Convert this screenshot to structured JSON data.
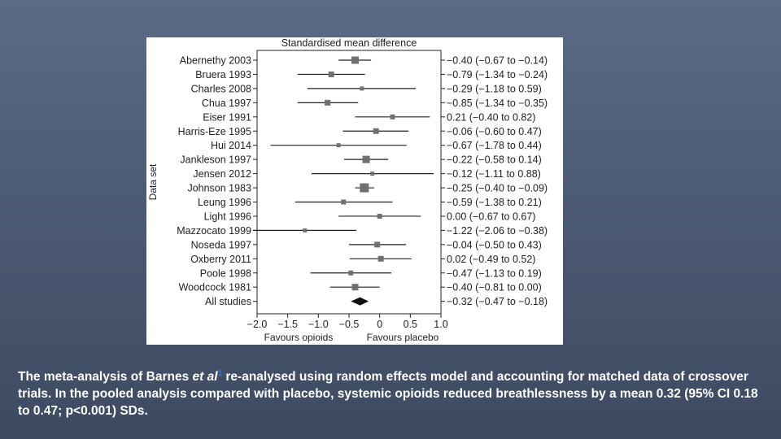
{
  "chart_data": {
    "type": "forest",
    "title": "Standardised mean difference",
    "ylabel": "Data set",
    "xlim": [
      -2.0,
      1.0
    ],
    "x_ticks": [
      "−2.0",
      "−1.5",
      "−1.0",
      "−0.5",
      "0",
      "0.5",
      "1.0"
    ],
    "x_tick_values": [
      -2.0,
      -1.5,
      -1.0,
      -0.5,
      0,
      0.5,
      1.0
    ],
    "favours_left": "Favours opioids",
    "favours_right": "Favours placebo",
    "studies": [
      {
        "name": "Abernethy 2003",
        "smd": -0.4,
        "lo": -0.67,
        "hi": -0.14,
        "weight": 3,
        "label": "−0.40 (−0.67 to −0.14)"
      },
      {
        "name": "Bruera 1993",
        "smd": -0.79,
        "lo": -1.34,
        "hi": -0.24,
        "weight": 2,
        "label": "−0.79 (−1.34 to −0.24)"
      },
      {
        "name": "Charles 2008",
        "smd": -0.29,
        "lo": -1.18,
        "hi": 0.59,
        "weight": 1,
        "label": "−0.29 (−1.18 to 0.59)"
      },
      {
        "name": "Chua 1997",
        "smd": -0.85,
        "lo": -1.34,
        "hi": -0.35,
        "weight": 2,
        "label": "−0.85 (−1.34 to −0.35)"
      },
      {
        "name": "Eiser 1991",
        "smd": 0.21,
        "lo": -0.4,
        "hi": 0.82,
        "weight": 1.5,
        "label": "0.21 (−0.40 to 0.82)"
      },
      {
        "name": "Harris-Eze 1995",
        "smd": -0.06,
        "lo": -0.6,
        "hi": 0.47,
        "weight": 2,
        "label": "−0.06 (−0.60 to 0.47)"
      },
      {
        "name": "Hui 2014",
        "smd": -0.67,
        "lo": -1.78,
        "hi": 0.44,
        "weight": 1,
        "label": "−0.67 (−1.78 to 0.44)"
      },
      {
        "name": "Jankleson 1997",
        "smd": -0.22,
        "lo": -0.58,
        "hi": 0.14,
        "weight": 3,
        "label": "−0.22 (−0.58 to 0.14)"
      },
      {
        "name": "Jensen 2012",
        "smd": -0.12,
        "lo": -1.11,
        "hi": 0.88,
        "weight": 1,
        "label": "−0.12 (−1.11 to 0.88)"
      },
      {
        "name": "Johnson 1983",
        "smd": -0.25,
        "lo": -0.4,
        "hi": -0.09,
        "weight": 4,
        "label": "−0.25 (−0.40 to −0.09)"
      },
      {
        "name": "Leung 1996",
        "smd": -0.59,
        "lo": -1.38,
        "hi": 0.21,
        "weight": 1.5,
        "label": "−0.59 (−1.38 to 0.21)"
      },
      {
        "name": "Light 1996",
        "smd": 0.0,
        "lo": -0.67,
        "hi": 0.67,
        "weight": 1.5,
        "label": "0.00 (−0.67 to 0.67)"
      },
      {
        "name": "Mazzocato 1999",
        "smd": -1.22,
        "lo": -2.06,
        "hi": -0.38,
        "weight": 1,
        "label": "−1.22 (−2.06 to −0.38)"
      },
      {
        "name": "Noseda 1997",
        "smd": -0.04,
        "lo": -0.5,
        "hi": 0.43,
        "weight": 2,
        "label": "−0.04 (−0.50 to 0.43)"
      },
      {
        "name": "Oxberry 2011",
        "smd": 0.02,
        "lo": -0.49,
        "hi": 0.52,
        "weight": 2,
        "label": "0.02 (−0.49 to 0.52)"
      },
      {
        "name": "Poole 1998",
        "smd": -0.47,
        "lo": -1.13,
        "hi": 0.19,
        "weight": 1.5,
        "label": "−0.47 (−1.13 to 0.19)"
      },
      {
        "name": "Woodcock 1981",
        "smd": -0.4,
        "lo": -0.81,
        "hi": 0.0,
        "weight": 2.5,
        "label": "−0.40 (−0.81 to 0.00)"
      }
    ],
    "pooled": {
      "name": "All studies",
      "smd": -0.32,
      "lo": -0.47,
      "hi": -0.18,
      "label": "−0.32 (−0.47 to −0.18)"
    },
    "colors": {
      "marker": "#707070",
      "line": "#222222",
      "diamond": "#111111"
    }
  },
  "caption": {
    "part1": "The meta-analysis of Barnes ",
    "et_al": "et al",
    "ref": "1",
    "part2": " re-analysed using random effects model and accounting for matched data of crossover trials. In the pooled analysis compared with placebo, systemic opioids reduced breathlessness by a mean 0.32 (95% CI 0.18 to 0.47; p<0.001) SDs."
  }
}
